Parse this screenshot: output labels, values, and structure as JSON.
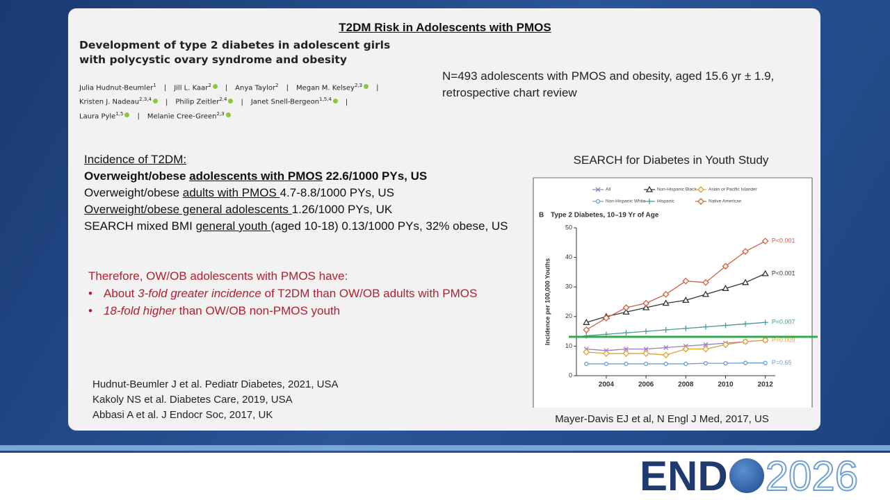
{
  "slide_title": "T2DM Risk in Adolescents with PMOS",
  "paper": {
    "title_lines": [
      "Development of type 2 diabetes in adolescent girls",
      "with polycystic ovary syndrome and obesity"
    ],
    "separator": "|",
    "authors": [
      [
        {
          "name": "Julia Hudnut-Beumler",
          "aff": "1",
          "orcid": false
        },
        {
          "name": "Jill L. Kaar",
          "aff": "2",
          "orcid": true
        },
        {
          "name": "Anya Taylor",
          "aff": "2",
          "orcid": false
        },
        {
          "name": "Megan M. Kelsey",
          "aff": "2,3",
          "orcid": true
        }
      ],
      [
        {
          "name": "Kristen J. Nadeau",
          "aff": "2,3,4",
          "orcid": true
        },
        {
          "name": "Philip Zeitler",
          "aff": "2,4",
          "orcid": true
        },
        {
          "name": "Janet Snell-Bergeon",
          "aff": "1,5,4",
          "orcid": true
        }
      ],
      [
        {
          "name": "Laura Pyle",
          "aff": "1,5",
          "orcid": true
        },
        {
          "name": "Melanie Cree-Green",
          "aff": "2,3",
          "orcid": true
        }
      ]
    ]
  },
  "study_lines": [
    "N=493 adolescents with PMOS and obesity, aged 15.6 yr ± 1.9,",
    "retrospective chart review"
  ],
  "incidence": {
    "heading": "Incidence of T2DM:",
    "lines": [
      {
        "bold": true,
        "segments": [
          {
            "text": "Overweight/obese ",
            "underline": false
          },
          {
            "text": "adolescents with PMOS",
            "underline": true
          },
          {
            "text": " 22.6/1000 PYs, US",
            "underline": false
          }
        ]
      },
      {
        "bold": false,
        "segments": [
          {
            "text": "Overweight/obese ",
            "underline": false
          },
          {
            "text": "adults with PMOS ",
            "underline": true
          },
          {
            "text": "4.7-8.8/1000 PYs, US",
            "underline": false
          }
        ]
      },
      {
        "bold": false,
        "segments": [
          {
            "text": "Overweight/obese general adolescents ",
            "underline": true
          },
          {
            "text": "1.26/1000 PYs, UK",
            "underline": false
          }
        ]
      },
      {
        "bold": false,
        "segments": [
          {
            "text": "SEARCH mixed BMI ",
            "underline": false
          },
          {
            "text": "general youth ",
            "underline": true
          },
          {
            "text": "(aged 10-18) 0.13/1000 PYs, 32% obese, US",
            "underline": false
          }
        ]
      }
    ]
  },
  "conclusion": {
    "heading": "Therefore, OW/OB adolescents with PMOS have:",
    "bullet": "•",
    "bullets": [
      [
        {
          "text": "About ",
          "italic": false
        },
        {
          "text": "3-fold greater incidence",
          "italic": true
        },
        {
          "text": " of T2DM than OW/OB adults with PMOS",
          "italic": false
        }
      ],
      [
        {
          "text": "18-fold higher",
          "italic": true
        },
        {
          "text": " than OW/OB non-PMOS youth",
          "italic": false
        }
      ]
    ]
  },
  "references": [
    "Hudnut-Beumler J et al. Pediatr Diabetes, 2021, USA",
    "Kakoly NS et al. Diabetes Care, 2019, USA",
    "Abbasi A et al. J Endocr Soc, 2017, UK"
  ],
  "chart_heading": "SEARCH for Diabetes in Youth Study",
  "chart_caption": "Mayer-Davis EJ et al, N Engl J Med, 2017, US",
  "logo": {
    "left": "END",
    "right": "2026"
  },
  "chart_data": {
    "type": "line",
    "panel_label": "B",
    "title": "Type 2 Diabetes, 10–19 Yr of Age",
    "y_label": "Incidence per 100,000 Youths",
    "x": [
      2003,
      2004,
      2005,
      2006,
      2007,
      2008,
      2009,
      2010,
      2011,
      2012
    ],
    "xlim": [
      2002.5,
      2012.5
    ],
    "xticks": [
      2004,
      2006,
      2008,
      2010,
      2012
    ],
    "ylim": [
      0,
      50
    ],
    "yticks": [
      0,
      10,
      20,
      30,
      40,
      50
    ],
    "series": [
      {
        "name": "All",
        "color": "#9b7bc4",
        "marker": "x",
        "values": [
          9,
          8.5,
          9,
          9,
          9.5,
          10,
          10.5,
          11,
          11.5,
          12
        ]
      },
      {
        "name": "Non-Hispanic Black",
        "color": "#333333",
        "marker": "triangle",
        "annotation": "P<0.001",
        "values": [
          18,
          20,
          21.5,
          23,
          24.5,
          25.5,
          27.5,
          29.5,
          31.5,
          34.5
        ]
      },
      {
        "name": "Asian or Pacific Islander",
        "color": "#e0a030",
        "marker": "diamond",
        "annotation": "P=0.009",
        "values": [
          8,
          7.5,
          7.5,
          7.5,
          7,
          9,
          9,
          10.5,
          11.5,
          12
        ]
      },
      {
        "name": "Non-Hispanic White",
        "color": "#6a9fd4",
        "marker": "circle",
        "annotation": "P=0.65",
        "values": [
          4,
          4,
          4,
          4,
          4,
          4,
          4.2,
          4.2,
          4.3,
          4.3
        ]
      },
      {
        "name": "Hispanic",
        "color": "#4a9a9a",
        "marker": "plus",
        "annotation": "P=0.007",
        "values": [
          13.5,
          14,
          14.5,
          15,
          15.5,
          16,
          16.5,
          17,
          17.5,
          18
        ]
      },
      {
        "name": "Native American",
        "color": "#d06040",
        "marker": "diamond",
        "annotation": "P<0.001",
        "values": [
          15.5,
          19.5,
          23,
          24.5,
          27.5,
          32,
          31.5,
          37,
          42,
          45.5
        ]
      }
    ]
  }
}
